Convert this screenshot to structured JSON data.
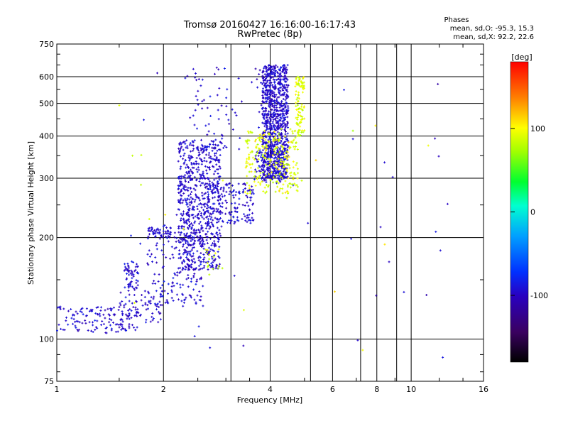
{
  "title": {
    "line1": "Tromsø 20160427 16:16:00-16:17:43",
    "line2": "RwPretec (8p)"
  },
  "phase_info": {
    "heading": "Phases",
    "o_line": "mean, sd,O: -95.3, 15.3",
    "x_line": "mean, sd,X: 92.2, 22.6"
  },
  "colorbar": {
    "unit": "[deg]",
    "ticks": [
      {
        "value": 100,
        "label": "100"
      },
      {
        "value": 0,
        "label": "0"
      },
      {
        "value": -100,
        "label": "-100"
      }
    ],
    "range": [
      -180,
      180
    ]
  },
  "chart_data": {
    "type": "scatter",
    "xlabel": "Frequency [MHz]",
    "ylabel": "Stationary phase Virtual Height [km]",
    "x_scale": "log",
    "y_scale": "log",
    "xlim": [
      1,
      16
    ],
    "ylim": [
      75,
      750
    ],
    "grid": true,
    "x_ticks": [
      {
        "value": 1,
        "label": "1"
      },
      {
        "value": 2,
        "label": "2"
      },
      {
        "value": 4,
        "label": "4"
      },
      {
        "value": 6,
        "label": "6"
      },
      {
        "value": 8,
        "label": "8"
      },
      {
        "value": 10,
        "label": "10"
      },
      {
        "value": 16,
        "label": "16"
      }
    ],
    "y_ticks": [
      {
        "value": 75,
        "label": "75"
      },
      {
        "value": 100,
        "label": "100"
      },
      {
        "value": 200,
        "label": "200"
      },
      {
        "value": 300,
        "label": "300"
      },
      {
        "value": 400,
        "label": "400"
      },
      {
        "value": 500,
        "label": "500"
      },
      {
        "value": 600,
        "label": "600"
      },
      {
        "value": 750,
        "label": "750"
      }
    ],
    "x_grid": [
      2,
      4,
      6,
      8,
      10,
      3.1,
      5.2,
      7.2,
      9.1
    ],
    "y_grid": [
      100,
      200,
      300,
      400,
      500,
      600
    ],
    "color_scale": "phase [deg], rainbow from -180 (black/purple) through blue, cyan, green, yellow to red (+180)",
    "series": [
      {
        "name": "O",
        "phase_mean": -95.3,
        "phase_sd": 15.3,
        "clusters": [
          {
            "f_range": [
              1.0,
              1.7
            ],
            "h_range": [
              104,
              125
            ],
            "n": 140
          },
          {
            "f_range": [
              1.5,
              2.0
            ],
            "h_range": [
              112,
              140
            ],
            "n": 60
          },
          {
            "f_range": [
              1.8,
              2.6
            ],
            "h_range": [
              125,
              220
            ],
            "n": 180
          },
          {
            "f_range": [
              2.6,
              3.6
            ],
            "h_range": [
              220,
              290
            ],
            "n": 160
          },
          {
            "f_range": [
              3.6,
              4.4
            ],
            "h_range": [
              290,
              360
            ],
            "n": 120
          },
          {
            "f_range": [
              1.55,
              1.7
            ],
            "h_range": [
              140,
              170
            ],
            "n": 60
          },
          {
            "f_range": [
              1.8,
              2.1
            ],
            "h_range": [
              200,
              215
            ],
            "n": 40
          },
          {
            "f_range": [
              2.2,
              2.9
            ],
            "h_range": [
              160,
              390
            ],
            "n": 700
          },
          {
            "f_range": [
              3.8,
              4.5
            ],
            "h_range": [
              300,
              650
            ],
            "n": 900
          },
          {
            "f_range": [
              2.3,
              4.0
            ],
            "h_range": [
              330,
              640
            ],
            "n": 90
          },
          {
            "f_range": [
              1.4,
              13
            ],
            "h_range": [
              85,
              650
            ],
            "n": 40
          }
        ]
      },
      {
        "name": "X",
        "phase_mean": 92.2,
        "phase_sd": 22.6,
        "clusters": [
          {
            "f_range": [
              3.4,
              4.8
            ],
            "h_range": [
              270,
              420
            ],
            "n": 260
          },
          {
            "f_range": [
              4.7,
              5.0
            ],
            "h_range": [
              400,
              600
            ],
            "n": 100
          },
          {
            "f_range": [
              2.6,
              3.0
            ],
            "h_range": [
              160,
              185
            ],
            "n": 15
          },
          {
            "f_range": [
              1.2,
              12
            ],
            "h_range": [
              90,
              520
            ],
            "n": 20
          }
        ]
      }
    ]
  }
}
